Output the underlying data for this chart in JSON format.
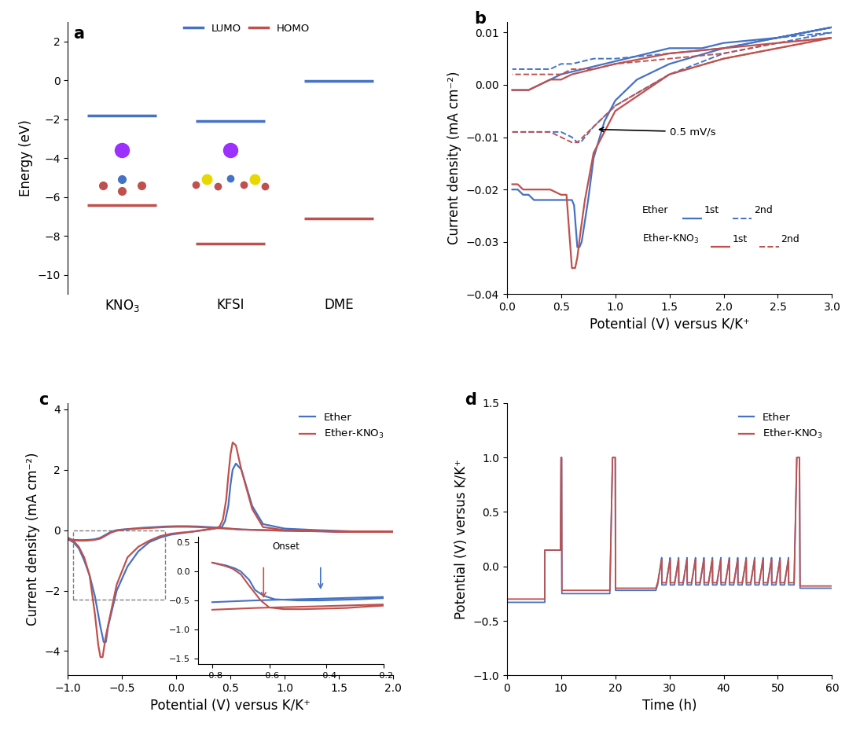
{
  "panel_a": {
    "molecules": [
      "KNO3",
      "KFSI",
      "DME"
    ],
    "lumo_energies": [
      -1.8,
      -2.1,
      -0.05
    ],
    "homo_energies": [
      -6.4,
      -8.4,
      -7.1
    ],
    "ylim": [
      -11,
      3
    ],
    "yticks": [
      2,
      0,
      -2,
      -4,
      -6,
      -8,
      -10
    ],
    "ylabel": "Energy (eV)",
    "lumo_color": "#4472C4",
    "homo_color": "#C0504D",
    "bar_width": 0.32
  },
  "panel_b": {
    "xlim": [
      0.0,
      3.0
    ],
    "ylim": [
      -0.04,
      0.012
    ],
    "xlabel": "Potential (V) versus K/K⁺",
    "ylabel": "Current density (mA cm⁻²)",
    "ether_color": "#4472C4",
    "kno3_color": "#C0504D",
    "annotation": "0.5 mV/s"
  },
  "panel_c": {
    "xlim": [
      -1.0,
      2.0
    ],
    "ylim": [
      -4.8,
      4.2
    ],
    "xlabel": "Potential (V) versus K/K⁺",
    "ylabel": "Current density (mA cm⁻²)",
    "ether_color": "#4472C4",
    "kno3_color": "#C0504D"
  },
  "panel_d": {
    "xlim": [
      0,
      60
    ],
    "ylim": [
      -1.0,
      1.5
    ],
    "xlabel": "Time (h)",
    "ylabel": "Potential (V) versus K/K⁺",
    "ether_color": "#4472C4",
    "kno3_color": "#C0504D"
  },
  "figure_bg": "#FFFFFF",
  "label_fontsize": 12,
  "tick_fontsize": 10,
  "legend_fontsize": 9.5
}
